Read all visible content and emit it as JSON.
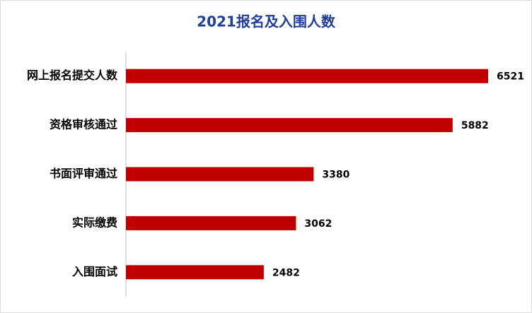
{
  "chart_data": {
    "type": "bar",
    "orientation": "horizontal",
    "title": "2021报名及入围人数",
    "categories": [
      "网上报名提交人数",
      "资格审核通过",
      "书面评审通过",
      "实际缴费",
      "入围面试"
    ],
    "values": [
      6521,
      5882,
      3380,
      3062,
      2482
    ],
    "color": "#c00000"
  }
}
